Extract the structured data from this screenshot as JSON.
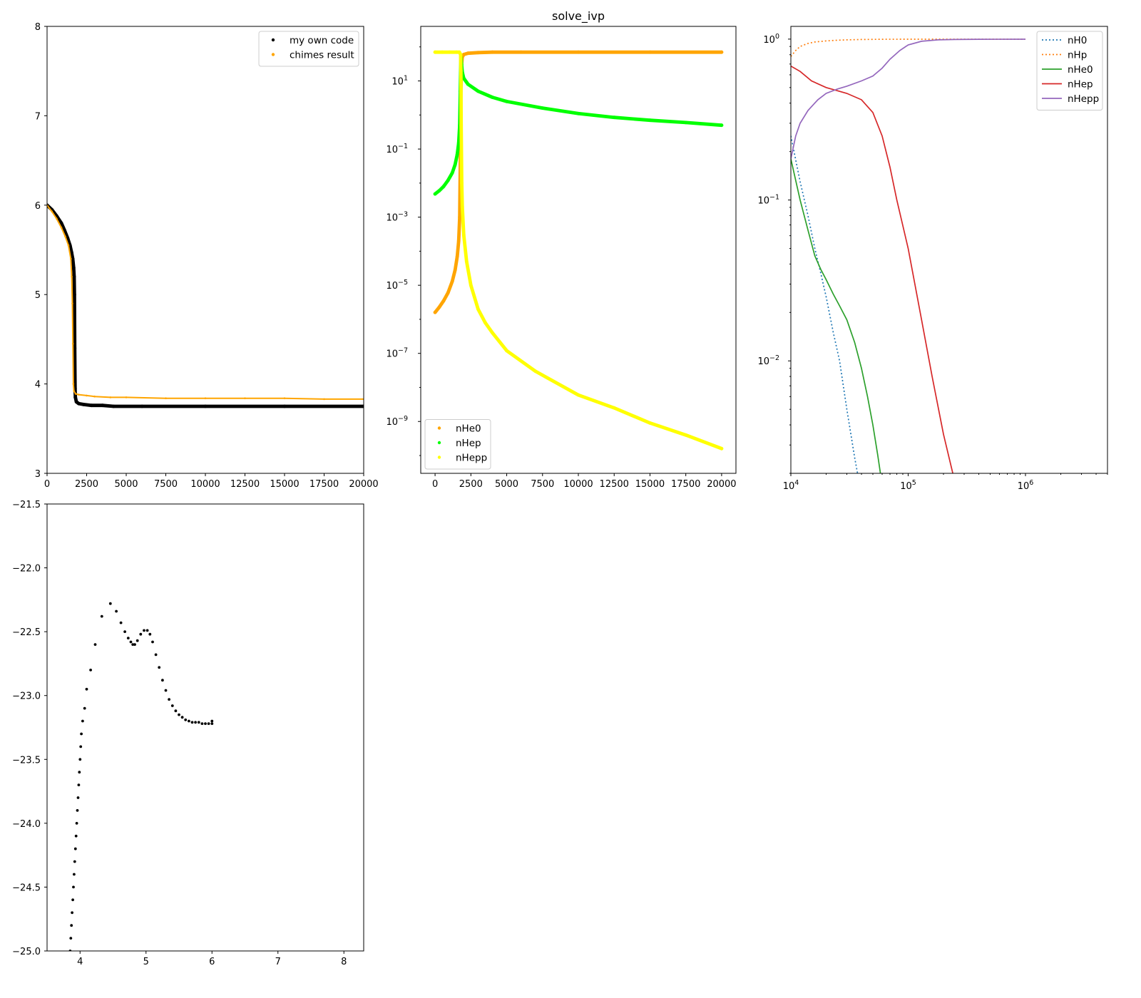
{
  "chart_data": [
    {
      "type": "scatter",
      "title": "",
      "xlabel": "",
      "ylabel": "",
      "xlim": [
        0,
        20000
      ],
      "ylim": [
        3,
        8
      ],
      "xticks": [
        "0",
        "2500",
        "5000",
        "7500",
        "10000",
        "12500",
        "15000",
        "17500",
        "20000"
      ],
      "yticks": [
        "3",
        "4",
        "5",
        "6",
        "7",
        "8"
      ],
      "legend_position": "top-right",
      "series": [
        {
          "name": "my own code",
          "color": "#000000",
          "x": [
            0,
            300,
            600,
            900,
            1100,
            1300,
            1450,
            1550,
            1620,
            1680,
            1710,
            1730,
            1740,
            1750,
            1760,
            1770,
            1790,
            1850,
            2000,
            2300,
            2800,
            3500,
            4200,
            6000,
            10000,
            15000,
            20000
          ],
          "y": [
            6.0,
            5.95,
            5.88,
            5.8,
            5.72,
            5.63,
            5.55,
            5.47,
            5.4,
            5.3,
            5.2,
            5.0,
            4.7,
            4.4,
            4.1,
            3.95,
            3.85,
            3.8,
            3.78,
            3.77,
            3.76,
            3.76,
            3.75,
            3.75,
            3.75,
            3.75,
            3.75
          ]
        },
        {
          "name": "chimes result",
          "color": "#ffa500",
          "x": [
            0,
            300,
            600,
            900,
            1150,
            1350,
            1500,
            1560,
            1600,
            1630,
            1660,
            1700,
            1800,
            2000,
            2500,
            3000,
            4000,
            5000,
            7500,
            10000,
            12500,
            15000,
            17500,
            20000
          ],
          "y": [
            6.0,
            5.93,
            5.85,
            5.75,
            5.65,
            5.55,
            5.4,
            5.2,
            4.9,
            4.45,
            4.0,
            3.92,
            3.89,
            3.88,
            3.87,
            3.86,
            3.85,
            3.85,
            3.84,
            3.84,
            3.84,
            3.84,
            3.83,
            3.83
          ]
        }
      ]
    },
    {
      "type": "scatter",
      "title": "solve_ivp",
      "xlabel": "",
      "ylabel": "",
      "xlim": [
        -1000,
        21000
      ],
      "yscale": "log",
      "ylim": [
        3e-11,
        400
      ],
      "xticks": [
        "0",
        "2500",
        "5000",
        "7500",
        "10000",
        "12500",
        "15000",
        "17500",
        "20000"
      ],
      "yticks": [
        "10",
        "10",
        "10",
        "10",
        "10",
        "10"
      ],
      "ytick_exponents": [
        "1",
        "−1",
        "−3",
        "−5",
        "−7",
        "−9"
      ],
      "legend_position": "bottom-left",
      "series": [
        {
          "name": "nHe0",
          "color": "#ffa500",
          "x": [
            0,
            300,
            600,
            900,
            1200,
            1400,
            1550,
            1650,
            1720,
            1760,
            1800,
            1850,
            1900,
            2000,
            2300,
            3000,
            4000,
            6000,
            10000,
            15000,
            20000
          ],
          "y": [
            1.6e-06,
            2.3e-06,
            3.5e-06,
            6e-06,
            1.3e-05,
            2.8e-05,
            7e-05,
            0.0002,
            0.001,
            0.05,
            5,
            30,
            50,
            60,
            65,
            68,
            70,
            70,
            70,
            70,
            70
          ]
        },
        {
          "name": "nHep",
          "color": "#00ff00",
          "x": [
            0,
            300,
            600,
            900,
            1200,
            1400,
            1550,
            1650,
            1720,
            1760,
            1800,
            1850,
            1900,
            2000,
            2300,
            3000,
            4000,
            5000,
            7500,
            10000,
            12500,
            15000,
            17500,
            20000
          ],
          "y": [
            0.0048,
            0.006,
            0.008,
            0.012,
            0.02,
            0.035,
            0.07,
            0.15,
            0.5,
            5,
            50,
            30,
            18,
            12,
            8,
            5,
            3.3,
            2.5,
            1.6,
            1.1,
            0.85,
            0.7,
            0.6,
            0.5
          ]
        },
        {
          "name": "nHepp",
          "color": "#ffff00",
          "x": [
            0,
            500,
            1000,
            1500,
            1700,
            1780,
            1800,
            1820,
            1860,
            1900,
            2000,
            2200,
            2500,
            3000,
            3500,
            4000,
            5000,
            7000,
            10000,
            12500,
            15000,
            17500,
            20000
          ],
          "y": [
            70,
            70,
            70,
            70,
            70,
            60,
            20,
            0.5,
            0.01,
            0.002,
            0.0003,
            5e-05,
            1e-05,
            2e-06,
            8e-07,
            4e-07,
            1.2e-07,
            3e-08,
            6e-09,
            2.5e-09,
            9e-10,
            4e-10,
            1.6e-10
          ]
        }
      ]
    },
    {
      "type": "line",
      "title": "",
      "xlabel": "",
      "ylabel": "",
      "xscale": "log",
      "yscale": "log",
      "xlim": [
        10000,
        5000000
      ],
      "ylim": [
        0.002,
        1.2
      ],
      "xticks": [
        "10",
        "10",
        "10"
      ],
      "xtick_exponents": [
        "4",
        "5",
        "6"
      ],
      "yticks": [
        "10",
        "10",
        "10"
      ],
      "ytick_exponents": [
        "0",
        "−1",
        "−2"
      ],
      "legend_position": "top-right",
      "series": [
        {
          "name": "nH0",
          "color": "#1f77b4",
          "style": "dotted",
          "x": [
            10000,
            12000,
            14000,
            16000,
            18000,
            20000,
            23000,
            26000,
            30000,
            35000,
            37000
          ],
          "y": [
            0.25,
            0.13,
            0.08,
            0.05,
            0.035,
            0.025,
            0.015,
            0.01,
            0.005,
            0.0025,
            0.002
          ]
        },
        {
          "name": "nHp",
          "color": "#ff7f0e",
          "style": "dotted",
          "x": [
            10000,
            11000,
            12000,
            14000,
            16000,
            20000,
            25000,
            30000,
            40000,
            60000,
            100000,
            1000000
          ],
          "y": [
            0.78,
            0.85,
            0.9,
            0.94,
            0.96,
            0.975,
            0.985,
            0.99,
            0.995,
            0.998,
            0.999,
            0.999
          ]
        },
        {
          "name": "nHe0",
          "color": "#2ca02c",
          "style": "solid",
          "x": [
            10000,
            12000,
            14000,
            16000,
            18000,
            20000,
            23000,
            26000,
            30000,
            35000,
            40000,
            45000,
            50000,
            55000,
            58000
          ],
          "y": [
            0.18,
            0.1,
            0.065,
            0.045,
            0.037,
            0.032,
            0.026,
            0.022,
            0.018,
            0.013,
            0.009,
            0.006,
            0.004,
            0.0026,
            0.002
          ]
        },
        {
          "name": "nHep",
          "color": "#d62728",
          "style": "solid",
          "x": [
            10000,
            12000,
            15000,
            20000,
            30000,
            40000,
            50000,
            60000,
            70000,
            80000,
            100000,
            130000,
            160000,
            200000,
            240000
          ],
          "y": [
            0.68,
            0.63,
            0.55,
            0.5,
            0.46,
            0.42,
            0.35,
            0.25,
            0.16,
            0.1,
            0.05,
            0.018,
            0.008,
            0.0035,
            0.002
          ]
        },
        {
          "name": "nHepp",
          "color": "#9467bd",
          "style": "solid",
          "x": [
            10000,
            11000,
            12000,
            14000,
            17000,
            20000,
            25000,
            30000,
            40000,
            50000,
            60000,
            70000,
            85000,
            100000,
            130000,
            180000,
            250000,
            400000,
            1000000
          ],
          "y": [
            0.18,
            0.25,
            0.3,
            0.36,
            0.42,
            0.46,
            0.49,
            0.51,
            0.55,
            0.59,
            0.66,
            0.75,
            0.85,
            0.92,
            0.97,
            0.99,
            0.995,
            0.998,
            0.999
          ]
        }
      ]
    },
    {
      "type": "scatter",
      "title": "",
      "xlabel": "",
      "ylabel": "",
      "xlim": [
        3.5,
        8.3
      ],
      "ylim": [
        -25,
        -21.5
      ],
      "xticks": [
        "4",
        "5",
        "6",
        "7",
        "8"
      ],
      "yticks": [
        "−21.5",
        "−22.0",
        "−22.5",
        "−23.0",
        "−23.5",
        "−24.0",
        "−24.5",
        "−25.0"
      ],
      "series": [
        {
          "name": "",
          "color": "#000000",
          "x": [
            3.85,
            3.86,
            3.87,
            3.88,
            3.89,
            3.9,
            3.91,
            3.92,
            3.93,
            3.94,
            3.95,
            3.96,
            3.97,
            3.98,
            3.99,
            4.0,
            4.01,
            4.02,
            4.04,
            4.07,
            4.1,
            4.16,
            4.23,
            4.33,
            4.46,
            4.55,
            4.62,
            4.68,
            4.73,
            4.77,
            4.8,
            4.83,
            4.87,
            4.92,
            4.97,
            5.02,
            5.06,
            5.1,
            5.15,
            5.2,
            5.25,
            5.3,
            5.35,
            5.4,
            5.45,
            5.5,
            5.55,
            5.6,
            5.65,
            5.7,
            5.75,
            5.8,
            5.85,
            5.9,
            5.95,
            6.0,
            6.0
          ],
          "y": [
            -25.0,
            -24.9,
            -24.8,
            -24.7,
            -24.6,
            -24.5,
            -24.4,
            -24.3,
            -24.2,
            -24.1,
            -24.0,
            -23.9,
            -23.8,
            -23.7,
            -23.6,
            -23.5,
            -23.4,
            -23.3,
            -23.2,
            -23.1,
            -22.95,
            -22.8,
            -22.6,
            -22.38,
            -22.28,
            -22.34,
            -22.43,
            -22.5,
            -22.55,
            -22.58,
            -22.6,
            -22.6,
            -22.57,
            -22.52,
            -22.49,
            -22.49,
            -22.52,
            -22.58,
            -22.68,
            -22.78,
            -22.88,
            -22.96,
            -23.03,
            -23.08,
            -23.12,
            -23.15,
            -23.17,
            -23.19,
            -23.2,
            -23.21,
            -23.21,
            -23.21,
            -23.22,
            -23.22,
            -23.22,
            -23.22,
            -23.2
          ]
        }
      ]
    }
  ]
}
